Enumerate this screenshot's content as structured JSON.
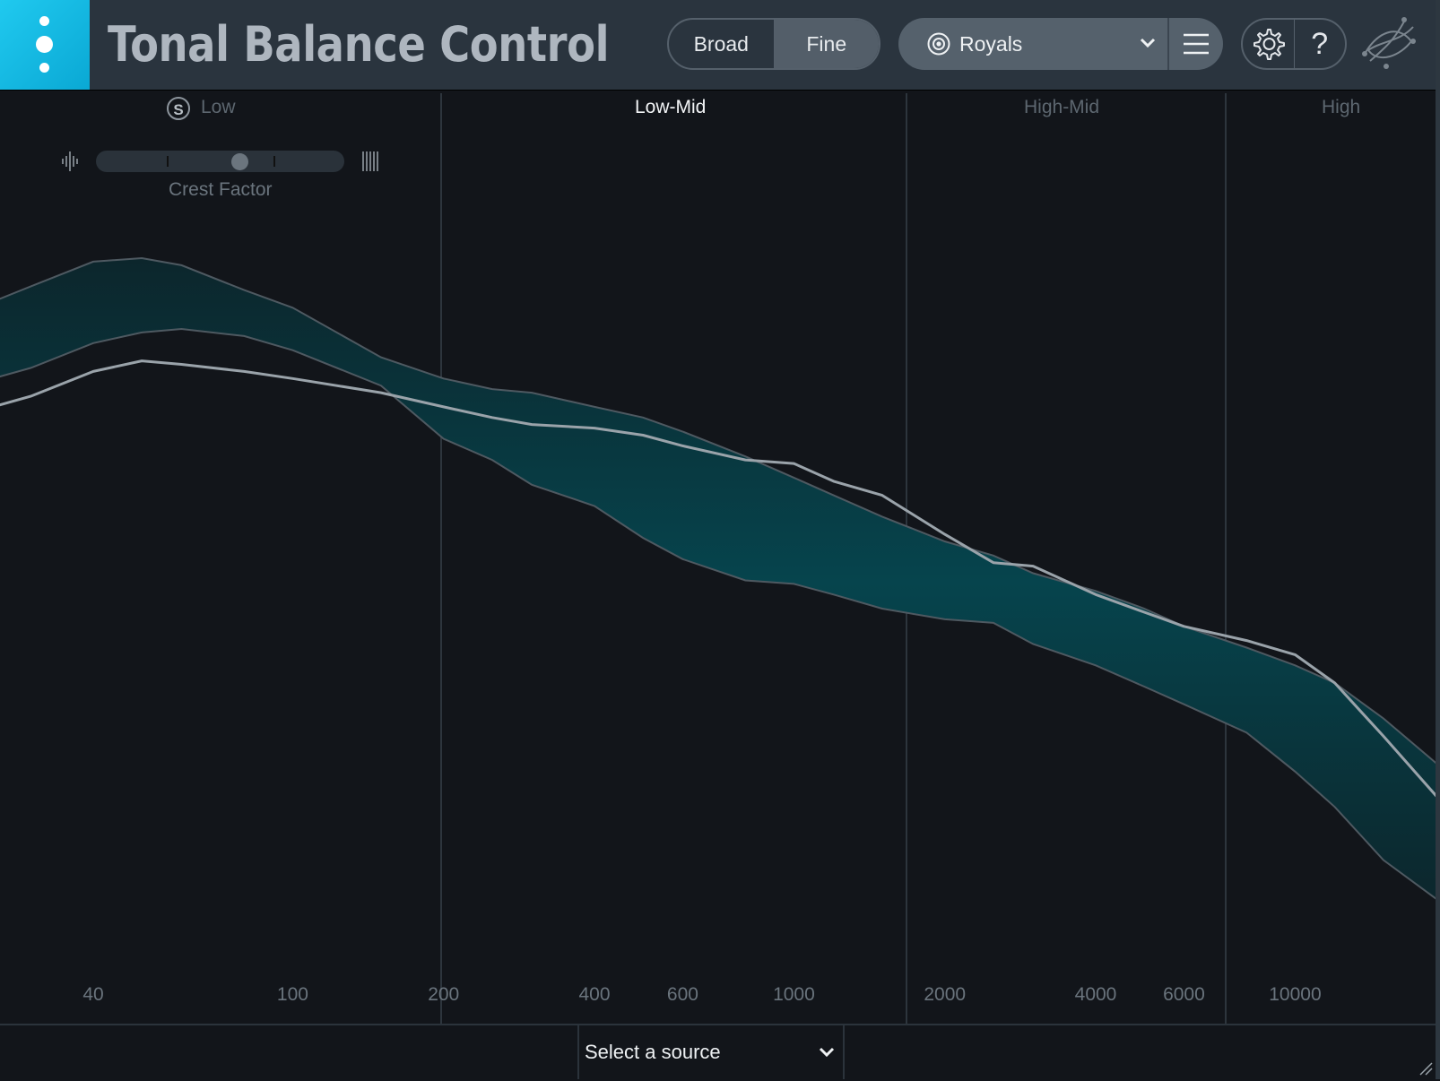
{
  "header": {
    "title": "Tonal Balance Control",
    "view_mode": {
      "broad_label": "Broad",
      "fine_label": "Fine",
      "selected": "Fine"
    },
    "preset": {
      "label": "Royals"
    },
    "help_label": "?"
  },
  "bands": {
    "low": "Low",
    "low_mid": "Low-Mid",
    "high_mid": "High-Mid",
    "high": "High",
    "solo_label": "S"
  },
  "crest": {
    "label": "Crest Factor",
    "value": 0.58
  },
  "footer": {
    "source_label": "Select a source"
  },
  "colors": {
    "accent": "#1ec6ee",
    "target_band": "#06444d",
    "background": "#12151a",
    "trace": "#9aa3aa"
  },
  "icons": [
    "menu-dots-icon",
    "target-icon",
    "chevron-down-icon",
    "hamburger-menu-icon",
    "gear-icon",
    "help-icon",
    "brand-logo-icon",
    "crest-transient-icon",
    "crest-dense-icon",
    "resize-grip-icon"
  ],
  "chart_data": {
    "type": "area",
    "x_scale": "log",
    "x_ticks": [
      40,
      100,
      200,
      400,
      600,
      1000,
      2000,
      4000,
      6000,
      10000
    ],
    "x": [
      20,
      30,
      40,
      50,
      60,
      80,
      100,
      150,
      200,
      250,
      300,
      400,
      500,
      600,
      800,
      1000,
      1200,
      1500,
      2000,
      2500,
      3000,
      4000,
      5000,
      6000,
      8000,
      10000,
      12000,
      15000,
      20000
    ],
    "series": [
      {
        "upper": [
          0.82,
          0.92,
          0.99,
          1.0,
          0.98,
          0.91,
          0.86,
          0.72,
          0.66,
          0.63,
          0.62,
          0.58,
          0.55,
          0.51,
          0.44,
          0.38,
          0.33,
          0.27,
          0.2,
          0.16,
          0.11,
          0.06,
          0.01,
          -0.04,
          -0.1,
          -0.15,
          -0.2,
          -0.3,
          -0.45
        ],
        "lower": [
          0.62,
          0.69,
          0.76,
          0.79,
          0.8,
          0.78,
          0.74,
          0.64,
          0.49,
          0.43,
          0.36,
          0.3,
          0.21,
          0.15,
          0.09,
          0.08,
          0.05,
          0.01,
          -0.02,
          -0.03,
          -0.09,
          -0.15,
          -0.21,
          -0.26,
          -0.34,
          -0.45,
          -0.55,
          -0.7,
          -0.83
        ]
      },
      {
        "values": [
          0.54,
          0.61,
          0.68,
          0.71,
          0.7,
          0.68,
          0.66,
          0.62,
          0.58,
          0.55,
          0.53,
          0.52,
          0.5,
          0.47,
          0.43,
          0.42,
          0.37,
          0.33,
          0.22,
          0.14,
          0.13,
          0.05,
          0.0,
          -0.04,
          -0.08,
          -0.12,
          -0.2,
          -0.35,
          -0.55
        ]
      }
    ],
    "band_splits": [
      220,
      1900,
      8200
    ]
  }
}
